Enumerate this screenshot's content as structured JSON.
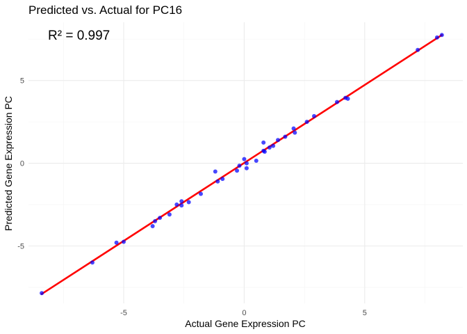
{
  "chart_data": {
    "type": "scatter",
    "title": "Predicted vs. Actual for PC16",
    "xlabel": "Actual Gene Expression PC",
    "ylabel": "Predicted Gene Expression PC",
    "annotation": "R² = 0.997",
    "xlim": [
      -8.95,
      9.07
    ],
    "ylim": [
      -8.47,
      8.52
    ],
    "x_ticks": [
      -5,
      0,
      5
    ],
    "x_tick_labels": [
      "-5",
      "0",
      "5"
    ],
    "y_ticks": [
      -5,
      0,
      5
    ],
    "y_tick_labels": [
      "-5",
      "0",
      "5"
    ],
    "grid": true,
    "point_color": "#0000ff",
    "line_color": "#ff0000",
    "fit_line": {
      "x": [
        -8.4,
        8.2
      ],
      "y": [
        -7.9,
        7.75
      ]
    },
    "series": [
      {
        "x": [
          -8.4,
          -6.3,
          -5.3,
          -5.0,
          -3.8,
          -3.7,
          -3.5,
          -3.1,
          -2.8,
          -2.6,
          -2.6,
          -2.3,
          -1.8,
          -1.2,
          -1.1,
          -0.9,
          -0.3,
          -0.2,
          0.0,
          0.1,
          0.1,
          0.5,
          0.8,
          0.8,
          0.85,
          1.05,
          1.2,
          1.4,
          1.7,
          2.05,
          2.1,
          2.6,
          2.9,
          3.85,
          4.2,
          4.3,
          7.2,
          8.0,
          8.2
        ],
        "y": [
          -7.85,
          -6.0,
          -4.8,
          -4.75,
          -3.8,
          -3.5,
          -3.3,
          -3.1,
          -2.5,
          -2.55,
          -2.3,
          -2.35,
          -1.85,
          -0.5,
          -1.1,
          -0.95,
          -0.45,
          -0.15,
          0.25,
          -0.3,
          0.0,
          0.15,
          0.75,
          1.25,
          0.7,
          0.95,
          1.05,
          1.4,
          1.6,
          2.1,
          1.85,
          2.5,
          2.85,
          3.7,
          3.95,
          3.9,
          6.85,
          7.6,
          7.75
        ]
      }
    ]
  }
}
